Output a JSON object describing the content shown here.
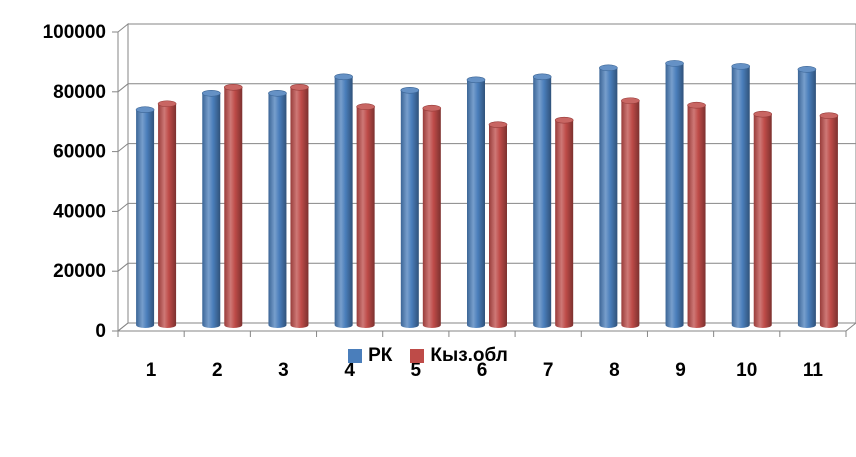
{
  "chart_data": {
    "type": "bar",
    "categories": [
      "1",
      "2",
      "3",
      "4",
      "5",
      "6",
      "7",
      "8",
      "9",
      "10",
      "11"
    ],
    "series": [
      {
        "name": "РК",
        "color": "#4a7ebb",
        "values": [
          72000,
          77500,
          77500,
          83000,
          78500,
          82000,
          83000,
          86000,
          87500,
          86500,
          85500
        ]
      },
      {
        "name": "Кыз.обл",
        "color": "#be4b48",
        "values": [
          74000,
          79500,
          79500,
          73000,
          72500,
          67000,
          68500,
          75000,
          73500,
          70500,
          70000
        ]
      }
    ],
    "yticks": [
      "0",
      "20000",
      "40000",
      "60000",
      "80000",
      "100000"
    ],
    "ylim": [
      0,
      100000
    ],
    "grid": true,
    "legend_position": "bottom",
    "title": "",
    "xlabel": "",
    "ylabel": ""
  }
}
